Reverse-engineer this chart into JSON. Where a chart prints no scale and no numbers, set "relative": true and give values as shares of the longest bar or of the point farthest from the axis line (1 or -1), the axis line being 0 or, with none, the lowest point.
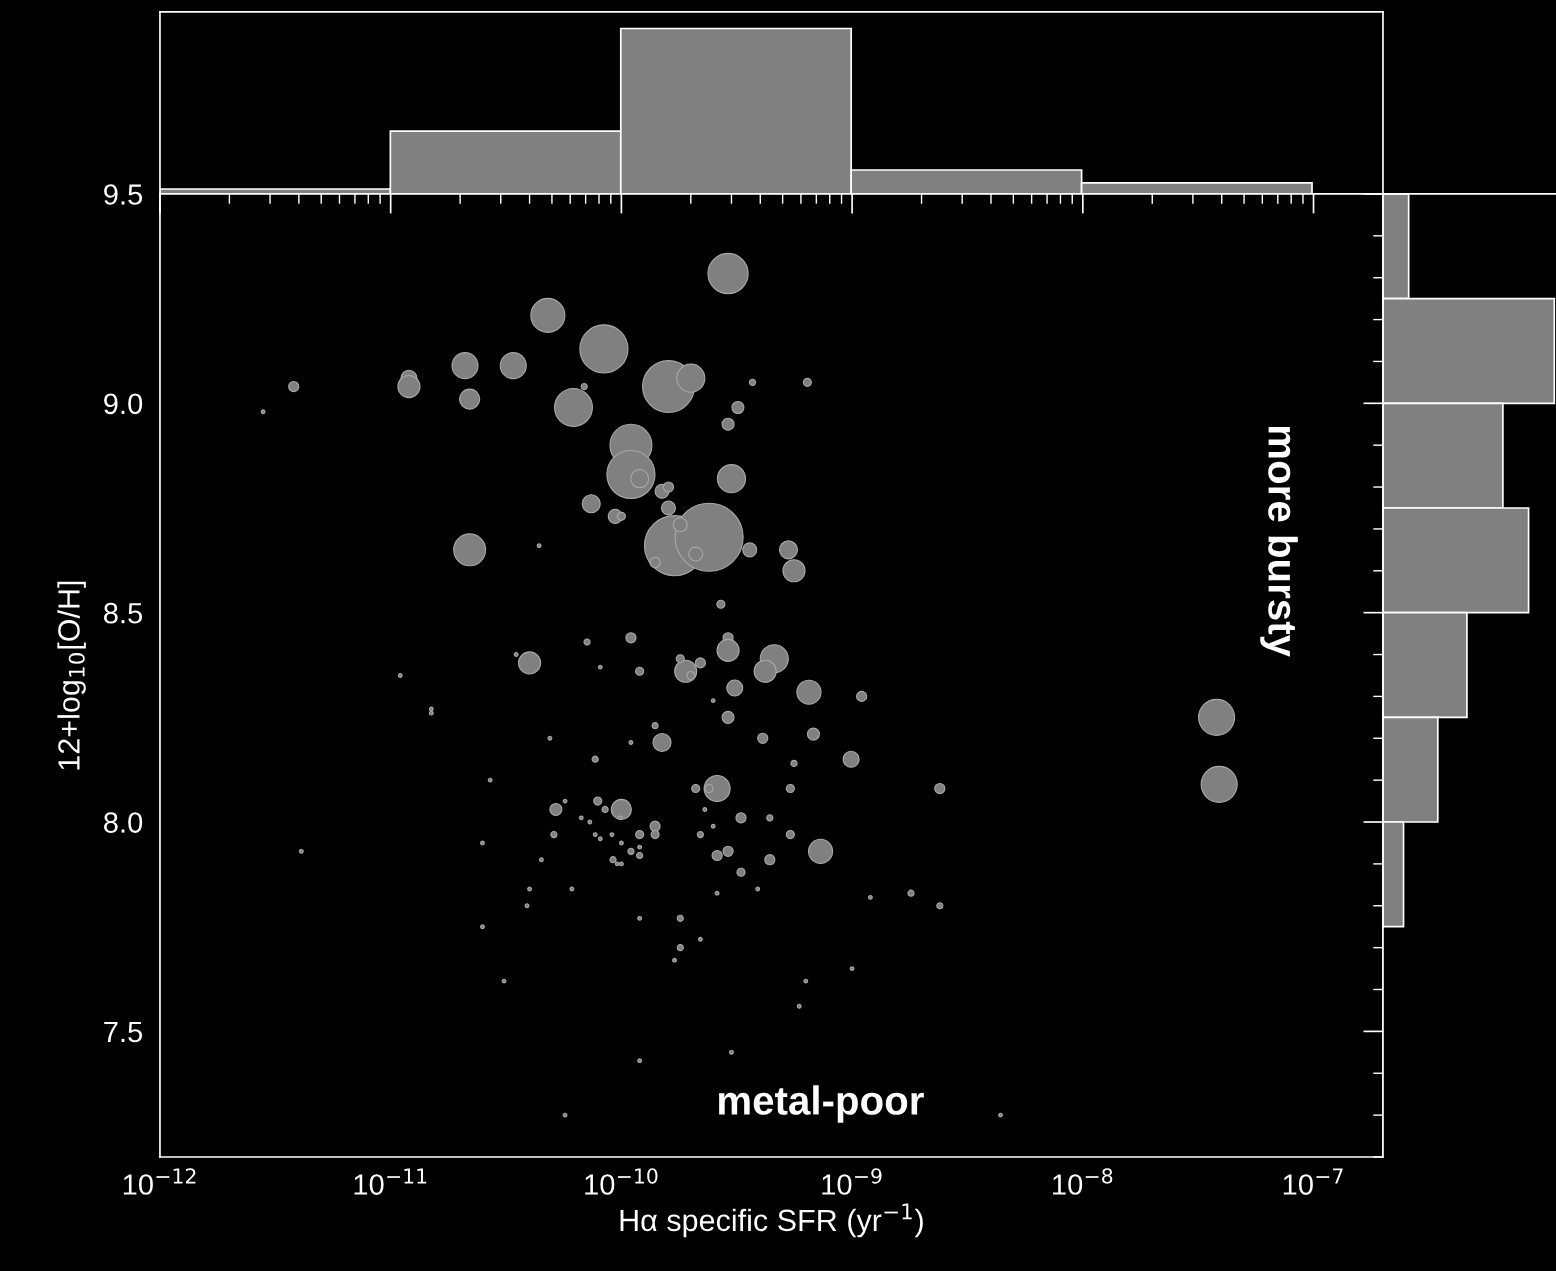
{
  "chart_data": [
    {
      "type": "bar",
      "categories": [
        null,
        null,
        null,
        null,
        null
      ],
      "values": [
        0.03,
        0.38,
        1,
        0.145,
        0.067
      ],
      "relative": true,
      "color": "#808080"
    },
    {
      "type": "bubble",
      "xlabel": "Hα specific SFR (yr$^{−1}$)",
      "ylabel": "12+log$_{10}$[O/H]",
      "color": "#808080",
      "log": "x",
      "xlim": [
        1e-12,
        2e-07
      ],
      "ylim": [
        7.2,
        9.5
      ],
      "xticks": [
        {
          "value": 1e-12,
          "label": "10$^{−12}$"
        },
        {
          "value": 1e-11,
          "label": "10$^{−11}$"
        },
        {
          "value": 1e-10,
          "label": "10$^{−10}$"
        },
        {
          "value": 1e-09,
          "label": "10$^{−9}$"
        },
        {
          "value": 1e-08,
          "label": "10$^{−8}$"
        },
        {
          "value": 1e-07,
          "label": "10$^{−7}$"
        }
      ],
      "yticks": [
        {
          "value": 7.5,
          "label": "7.5"
        },
        {
          "value": 8.0,
          "label": "8.0"
        },
        {
          "value": 8.5,
          "label": "8.5"
        },
        {
          "value": 9.0,
          "label": "9.0"
        },
        {
          "value": 9.5,
          "label": "9.5"
        }
      ],
      "x": [
        2.9e-10,
        4.8e-11,
        8.4e-11,
        2.1e-11,
        3.4e-11,
        1.2e-11,
        1.2e-11,
        3.8e-12,
        2.2e-11,
        6.2e-11,
        1.6e-10,
        2e-10,
        1.1e-10,
        1.1e-10,
        1.2e-10,
        3e-10,
        3.2e-10,
        2.9e-10,
        3.7e-10,
        6.4e-10,
        6.9e-11,
        2.8e-12,
        7.4e-11,
        9.4e-11,
        1e-10,
        1.5e-10,
        1.6e-10,
        1.6e-10,
        1.7e-10,
        2.4e-10,
        1.8e-10,
        2.1e-10,
        1.4e-10,
        2.2e-11,
        4.4e-11,
        3.6e-10,
        5.3e-10,
        5.6e-10,
        2.7e-10,
        1.1e-10,
        2.9e-10,
        2.9e-10,
        7.1e-11,
        4e-11,
        3.5e-11,
        8.1e-11,
        1.2e-10,
        1.9e-10,
        1.8e-10,
        2.2e-10,
        2e-10,
        4.6e-10,
        4.2e-10,
        3.1e-10,
        6.5e-10,
        1.1e-09,
        2.5e-10,
        2.9e-10,
        1.1e-11,
        1.5e-11,
        1.5e-11,
        1.4e-10,
        1.5e-10,
        4.9e-11,
        1.1e-10,
        4.1e-10,
        6.8e-10,
        9.9e-10,
        5.6e-10,
        7.7e-11,
        2.6e-10,
        2.1e-10,
        2.4e-10,
        5.4e-10,
        2.7e-11,
        2.4e-09,
        5.2e-11,
        5.7e-11,
        7.9e-11,
        1e-10,
        8.5e-11,
        9.9e-11,
        6.7e-11,
        7.3e-11,
        1.4e-10,
        1.4e-10,
        1.2e-10,
        3.3e-10,
        2.3e-10,
        2.5e-10,
        4.4e-10,
        5.4e-10,
        2.2e-10,
        5.1e-11,
        7.7e-11,
        8.1e-11,
        9.1e-11,
        1e-10,
        1.1e-10,
        1.2e-10,
        9.2e-11,
        9.6e-11,
        1e-10,
        1.2e-10,
        2.6e-10,
        2.9e-10,
        4.4e-10,
        7.3e-10,
        3.3e-10,
        2.5e-11,
        4.1e-12,
        4.5e-11,
        6.1e-11,
        4e-11,
        2.6e-10,
        3.9e-10,
        1.8e-09,
        1.2e-09,
        2.4e-09,
        3.9e-11,
        2.5e-11,
        1.2e-10,
        1.8e-10,
        2.2e-10,
        1.8e-10,
        1.7e-10,
        6.3e-10,
        1e-09,
        3.1e-11,
        5.9e-10,
        3e-10,
        1.2e-10,
        5.7e-11,
        4.4e-09,
        3.8e-08,
        3.9e-08
      ],
      "values": [
        9.31,
        9.21,
        9.13,
        9.09,
        9.09,
        9.06,
        9.04,
        9.04,
        9.01,
        8.99,
        9.04,
        9.06,
        8.9,
        8.83,
        8.82,
        8.82,
        8.99,
        8.95,
        9.05,
        9.05,
        9.04,
        8.98,
        8.76,
        8.73,
        8.73,
        8.79,
        8.8,
        8.75,
        8.66,
        8.68,
        8.71,
        8.64,
        8.62,
        8.65,
        8.66,
        8.65,
        8.65,
        8.6,
        8.52,
        8.44,
        8.44,
        8.41,
        8.43,
        8.38,
        8.4,
        8.37,
        8.36,
        8.36,
        8.39,
        8.38,
        8.35,
        8.39,
        8.36,
        8.32,
        8.31,
        8.3,
        8.29,
        8.25,
        8.35,
        8.27,
        8.26,
        8.23,
        8.19,
        8.2,
        8.19,
        8.2,
        8.21,
        8.15,
        8.14,
        8.15,
        8.08,
        8.08,
        8.08,
        8.08,
        8.1,
        8.08,
        8.03,
        8.05,
        8.05,
        8.03,
        8.03,
        8.01,
        8.01,
        8.0,
        7.99,
        7.97,
        7.97,
        8.01,
        8.03,
        7.99,
        8.01,
        7.97,
        7.97,
        7.97,
        7.97,
        7.96,
        7.97,
        7.95,
        7.93,
        7.92,
        7.91,
        7.9,
        7.9,
        7.94,
        7.92,
        7.93,
        7.91,
        7.93,
        7.88,
        7.95,
        7.93,
        7.91,
        7.84,
        7.84,
        7.83,
        7.84,
        7.83,
        7.82,
        7.8,
        7.8,
        7.75,
        7.77,
        7.77,
        7.72,
        7.7,
        7.67,
        7.62,
        7.65,
        7.62,
        7.56,
        7.45,
        7.43,
        7.3,
        7.3,
        8.25,
        8.09
      ],
      "sizes": [
        0.35,
        0.25,
        0.5,
        0.146,
        0.146,
        0.055,
        0.105,
        0.022,
        0.087,
        0.31,
        0.58,
        0.17,
        0.38,
        0.5,
        0.07,
        0.17,
        0.031,
        0.031,
        0.008,
        0.014,
        0.008,
        0.003,
        0.07,
        0.042,
        0.014,
        0.042,
        0.022,
        0.042,
        0.78,
        1,
        0.042,
        0.042,
        0.022,
        0.22,
        0.003,
        0.042,
        0.07,
        0.105,
        0.014,
        0.022,
        0.022,
        0.105,
        0.008,
        0.105,
        0.003,
        0.003,
        0.014,
        0.105,
        0.014,
        0.022,
        0.014,
        0.17,
        0.105,
        0.055,
        0.125,
        0.022,
        0.003,
        0.031,
        0.003,
        0.003,
        0.003,
        0.008,
        0.07,
        0.003,
        0.003,
        0.022,
        0.031,
        0.055,
        0.008,
        0.008,
        0.146,
        0.014,
        0.014,
        0.014,
        0.003,
        0.022,
        0.031,
        0.003,
        0.014,
        0.087,
        0.008,
        0.003,
        0.003,
        0.003,
        0.022,
        0.014,
        0.014,
        0.022,
        0.003,
        0.003,
        0.008,
        0.014,
        0.008,
        0.008,
        0.003,
        0.003,
        0.003,
        0.003,
        0.008,
        0.008,
        0.008,
        0.003,
        0.003,
        0.003,
        0.022,
        0.022,
        0.022,
        0.125,
        0.014,
        0.003,
        0.003,
        0.003,
        0.003,
        0.003,
        0.003,
        0.003,
        0.008,
        0.003,
        0.008,
        0.003,
        0.003,
        0.003,
        0.008,
        0.003,
        0.008,
        0.003,
        0.003,
        0.003,
        0.003,
        0.003,
        0.003,
        0.003,
        0.003,
        0.003,
        0.28,
        0.28
      ],
      "annotations": [
        "metal-poor",
        "more bursty"
      ]
    },
    {
      "type": "bar",
      "orientation": "horizontal",
      "categories": [
        null,
        null,
        null,
        null,
        null,
        null,
        null
      ],
      "values": [
        0.15,
        1,
        0.7,
        0.85,
        0.49,
        0.32,
        0.12
      ],
      "relative": true,
      "color": "#808080"
    }
  ]
}
